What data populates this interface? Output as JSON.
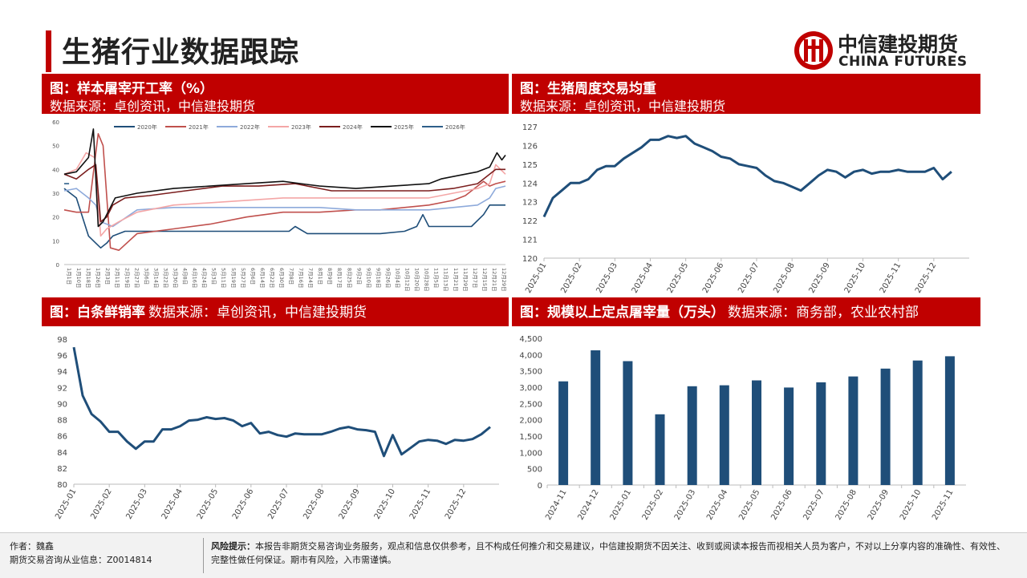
{
  "page": {
    "title": "生猪行业数据跟踪",
    "logo_cn": "中信建投期货",
    "logo_en": "CHINA FUTURES",
    "brand_color": "#c00000"
  },
  "panels": {
    "p1": {
      "title": "图：样本屠宰开工率（%）",
      "source": "数据来源：卓创资讯，中信建投期货"
    },
    "p2": {
      "title": "图：生猪周度交易均重",
      "source": "数据来源：卓创资讯，中信建投期货"
    },
    "p3": {
      "title": "图：白条鲜销率",
      "source": "数据来源：卓创资讯，中信建投期货"
    },
    "p4": {
      "title": "图：规模以上定点屠宰量（万头）",
      "source": "数据来源：商务部，农业农村部"
    }
  },
  "footer": {
    "author_label": "作者：",
    "author": "魏鑫",
    "license_label": "期货交易咨询从业信息：",
    "license": "Z0014814",
    "risk_label": "风险提示：",
    "risk_text": "本报告非期货交易咨询业务服务，观点和信息仅供参考，且不构成任何推介和交易建议，中信建投期货不因关注、收到或阅读本报告而视相关人员为客户，不对以上分享内容的准确性、有效性、完整性做任何保证。期市有风险，入市需谨慎。"
  },
  "chart_data": [
    {
      "type": "line",
      "title": "图：样本屠宰开工率（%）",
      "ylim": [
        0,
        60
      ],
      "yticks": [
        0,
        10,
        20,
        30,
        40,
        50,
        60
      ],
      "x_labels": [
        "1月1日",
        "1月10日",
        "1月18日",
        "1月26日",
        "2月3日",
        "2月11日",
        "2月19日",
        "2月27日",
        "3月6日",
        "3月14日",
        "3月22日",
        "3月30日",
        "4月8日",
        "4月16日",
        "4月24日",
        "5月3日",
        "5月11日",
        "5月19日",
        "5月27日",
        "6月6日",
        "6月14日",
        "6月22日",
        "6月30日",
        "7月8日",
        "7月16日",
        "7月24日",
        "8月1日",
        "8月9日",
        "8月17日",
        "8月25日",
        "9月2日",
        "9月10日",
        "9月18日",
        "9月26日",
        "10月4日",
        "10月12日",
        "10月20日",
        "10月28日",
        "11月5日",
        "11月13日",
        "11月21日",
        "11月29日",
        "12月7日",
        "12月15日",
        "12月21日",
        "12月29日"
      ],
      "x_min": 0,
      "x_max": 363,
      "legend_position": "top",
      "series": [
        {
          "name": "2020年",
          "color": "#1f4e79",
          "x": [
            0,
            10,
            20,
            26,
            30,
            35,
            40,
            50,
            70,
            100,
            130,
            160,
            180,
            185,
            190,
            200,
            230,
            260,
            280,
            290,
            295,
            300,
            320,
            335,
            345,
            350,
            355,
            363
          ],
          "y": [
            32,
            28,
            12,
            9,
            7,
            9,
            12,
            14,
            14,
            14,
            14,
            14,
            14,
            14,
            16,
            13,
            13,
            13,
            14,
            16,
            21,
            16,
            16,
            16,
            21,
            25,
            25,
            25
          ]
        },
        {
          "name": "2021年",
          "color": "#c0504d",
          "x": [
            0,
            10,
            20,
            28,
            32,
            38,
            45,
            60,
            90,
            120,
            150,
            180,
            210,
            240,
            260,
            280,
            300,
            320,
            330,
            340,
            345,
            350,
            355,
            363
          ],
          "y": [
            23,
            22,
            22,
            55,
            50,
            7,
            6,
            13,
            15,
            17,
            20,
            22,
            22,
            23,
            23,
            24,
            25,
            27,
            29,
            33,
            35,
            33,
            34,
            35
          ]
        },
        {
          "name": "2022年",
          "color": "#8eaadb",
          "x": [
            0,
            10,
            20,
            26,
            30,
            40,
            60,
            90,
            120,
            150,
            180,
            210,
            240,
            260,
            280,
            290,
            300,
            320,
            340,
            350,
            355,
            363
          ],
          "y": [
            31,
            32,
            28,
            25,
            18,
            16,
            23,
            24,
            24,
            24,
            24,
            24,
            23,
            23,
            23,
            23,
            23,
            24,
            25,
            28,
            32,
            33
          ]
        },
        {
          "name": "2023年",
          "color": "#f4a6a6",
          "x": [
            0,
            10,
            18,
            25,
            30,
            35,
            45,
            60,
            90,
            120,
            150,
            180,
            210,
            240,
            260,
            280,
            300,
            320,
            340,
            350,
            355,
            363
          ],
          "y": [
            38,
            40,
            47,
            45,
            12,
            15,
            18,
            22,
            25,
            26,
            27,
            28,
            28,
            28,
            28,
            28,
            28,
            30,
            32,
            34,
            42,
            38
          ]
        },
        {
          "name": "2024年",
          "color": "#7b1e1e",
          "x": [
            0,
            10,
            20,
            26,
            30,
            35,
            40,
            50,
            70,
            100,
            130,
            160,
            190,
            220,
            250,
            280,
            300,
            320,
            340,
            350,
            355,
            363
          ],
          "y": [
            38,
            36,
            40,
            42,
            18,
            20,
            25,
            28,
            29,
            31,
            33,
            33,
            34,
            31,
            31,
            31,
            31,
            32,
            34,
            38,
            40,
            40
          ]
        },
        {
          "name": "2025年",
          "color": "#111111",
          "x": [
            0,
            10,
            20,
            24,
            28,
            32,
            36,
            42,
            60,
            90,
            120,
            150,
            180,
            210,
            240,
            270,
            300,
            310,
            320,
            340,
            350,
            356,
            360,
            363
          ],
          "y": [
            38,
            39,
            45,
            57,
            16,
            18,
            22,
            28,
            30,
            32,
            33,
            34,
            35,
            33,
            32,
            33,
            34,
            36,
            37,
            39,
            41,
            47,
            44,
            46
          ]
        },
        {
          "name": "2026年",
          "color": "#2e5f8a",
          "x": [
            0,
            4
          ],
          "y": [
            34,
            34
          ]
        }
      ]
    },
    {
      "type": "line",
      "title": "图：生猪周度交易均重",
      "ylim": [
        120,
        127
      ],
      "yticks": [
        120,
        121,
        122,
        123,
        124,
        125,
        126,
        127
      ],
      "x_labels": [
        "2025-01",
        "2025-02",
        "2025-03",
        "2025-04",
        "2025-05",
        "2025-06",
        "2025-07",
        "2025-08",
        "2025-09",
        "2025-10",
        "2025-11",
        "2025-12"
      ],
      "series": [
        {
          "name": "",
          "color": "#1f4e79",
          "x": [
            0,
            0.25,
            0.5,
            0.75,
            1.0,
            1.25,
            1.5,
            1.75,
            2.0,
            2.25,
            2.5,
            2.75,
            3.0,
            3.25,
            3.5,
            3.75,
            4.0,
            4.25,
            4.5,
            4.75,
            5.0,
            5.25,
            5.5,
            5.75,
            6.0,
            6.25,
            6.5,
            6.75,
            7.0,
            7.25,
            7.5,
            7.75,
            8.0,
            8.25,
            8.5,
            8.75,
            9.0,
            9.25,
            9.5,
            9.75,
            10.0,
            10.25,
            10.5,
            10.75,
            11.0,
            11.25,
            11.5
          ],
          "y": [
            122.2,
            123.2,
            123.6,
            124.0,
            124.0,
            124.2,
            124.7,
            124.9,
            124.9,
            125.3,
            125.6,
            125.9,
            126.3,
            126.3,
            126.5,
            126.4,
            126.5,
            126.1,
            125.9,
            125.7,
            125.4,
            125.3,
            125.0,
            124.9,
            124.8,
            124.4,
            124.1,
            124.0,
            123.8,
            123.6,
            124.0,
            124.4,
            124.7,
            124.6,
            124.3,
            124.6,
            124.7,
            124.5,
            124.6,
            124.6,
            124.7,
            124.6,
            124.6,
            124.6,
            124.8,
            124.2,
            124.6
          ]
        }
      ]
    },
    {
      "type": "line",
      "title": "图：白条鲜销率",
      "ylim": [
        80,
        98
      ],
      "yticks": [
        80,
        82,
        84,
        86,
        88,
        90,
        92,
        94,
        96,
        98
      ],
      "x_labels": [
        "2025-01",
        "2025-02",
        "2025-03",
        "2025-04",
        "2025-05",
        "2025-06",
        "2025-07",
        "2025-08",
        "2025-09",
        "2025-10",
        "2025-11",
        "2025-12"
      ],
      "series": [
        {
          "name": "",
          "color": "#1f4e79",
          "x": [
            0,
            0.25,
            0.5,
            0.75,
            1.0,
            1.25,
            1.5,
            1.75,
            2.0,
            2.25,
            2.5,
            2.75,
            3.0,
            3.25,
            3.5,
            3.75,
            4.0,
            4.25,
            4.5,
            4.75,
            5.0,
            5.25,
            5.5,
            5.75,
            6.0,
            6.25,
            6.5,
            6.75,
            7.0,
            7.25,
            7.5,
            7.75,
            8.0,
            8.25,
            8.5,
            8.75,
            9.0,
            9.25,
            9.5,
            9.75,
            10.0,
            10.25,
            10.5,
            10.75,
            11.0,
            11.25,
            11.5,
            11.75
          ],
          "y": [
            97,
            91,
            88.7,
            87.8,
            86.5,
            86.5,
            85.3,
            84.4,
            85.3,
            85.3,
            86.8,
            86.8,
            87.2,
            87.9,
            88.0,
            88.3,
            88.1,
            88.2,
            87.9,
            87.2,
            87.6,
            86.3,
            86.5,
            86.1,
            85.9,
            86.3,
            86.2,
            86.2,
            86.2,
            86.5,
            86.9,
            87.1,
            86.8,
            86.7,
            86.5,
            83.5,
            86.1,
            83.7,
            84.5,
            85.3,
            85.5,
            85.4,
            85.0,
            85.5,
            85.4,
            85.6,
            86.2,
            87.1
          ]
        }
      ]
    },
    {
      "type": "bar",
      "title": "图：规模以上定点屠宰量（万头）",
      "ylim": [
        0,
        4500
      ],
      "yticks": [
        "0",
        "500",
        "1,000",
        "1,500",
        "2,000",
        "2,500",
        "3,000",
        "3,500",
        "4,000",
        "4,500"
      ],
      "categories": [
        "2024-11",
        "2024-12",
        "2025-01",
        "2025-02",
        "2025-03",
        "2025-04",
        "2025-05",
        "2025-06",
        "2025-07",
        "2025-08",
        "2025-09",
        "2025-10",
        "2025-11"
      ],
      "values": [
        3180,
        4130,
        3800,
        2170,
        3030,
        3060,
        3210,
        2990,
        3150,
        3330,
        3570,
        3820,
        3950
      ],
      "color": "#1f4e79"
    }
  ]
}
